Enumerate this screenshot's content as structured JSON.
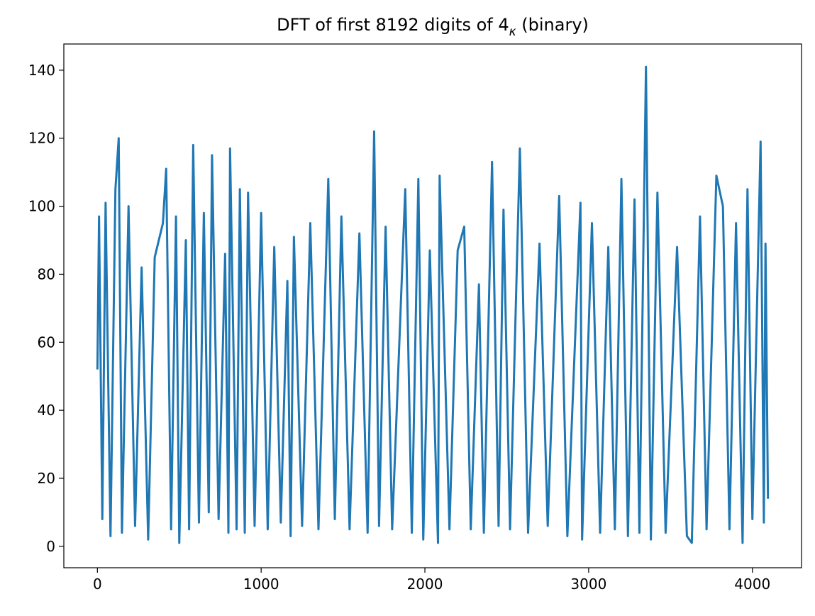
{
  "chart_data": {
    "type": "line",
    "title": "DFT of first 8192 digits of 4",
    "title_subscript": "κ",
    "title_suffix": " (binary)",
    "x": [
      0,
      10,
      30,
      50,
      80,
      110,
      130,
      150,
      190,
      230,
      270,
      310,
      350,
      400,
      420,
      450,
      480,
      500,
      540,
      560,
      585,
      620,
      650,
      680,
      700,
      740,
      780,
      800,
      810,
      850,
      870,
      900,
      920,
      960,
      1000,
      1040,
      1080,
      1120,
      1160,
      1180,
      1200,
      1250,
      1300,
      1350,
      1410,
      1450,
      1490,
      1540,
      1600,
      1650,
      1690,
      1720,
      1760,
      1800,
      1880,
      1920,
      1960,
      1990,
      2030,
      2080,
      2090,
      2150,
      2200,
      2240,
      2280,
      2330,
      2360,
      2410,
      2450,
      2480,
      2520,
      2580,
      2630,
      2700,
      2750,
      2820,
      2870,
      2950,
      2960,
      3020,
      3070,
      3120,
      3160,
      3200,
      3240,
      3280,
      3310,
      3350,
      3380,
      3420,
      3470,
      3540,
      3600,
      3630,
      3680,
      3720,
      3780,
      3820,
      3860,
      3900,
      3940,
      3970,
      4000,
      4050,
      4070,
      4080,
      4095
    ],
    "series": [
      {
        "color": "#1f77b4",
        "values": [
          52,
          97,
          8,
          101,
          3,
          105,
          120,
          4,
          100,
          6,
          82,
          2,
          85,
          95,
          111,
          5,
          97,
          1,
          90,
          5,
          118,
          7,
          98,
          10,
          115,
          8,
          86,
          4,
          117,
          5,
          105,
          4,
          104,
          6,
          98,
          5,
          88,
          7,
          78,
          3,
          91,
          6,
          95,
          5,
          108,
          8,
          97,
          5,
          92,
          4,
          122,
          6,
          94,
          5,
          105,
          4,
          108,
          2,
          87,
          1,
          109,
          5,
          87,
          94,
          5,
          77,
          4,
          113,
          6,
          99,
          5,
          117,
          4,
          89,
          6,
          103,
          3,
          101,
          2,
          95,
          4,
          88,
          5,
          108,
          3,
          102,
          4,
          141,
          2,
          104,
          4,
          88,
          3,
          1,
          97,
          5,
          109,
          100,
          5,
          95,
          1,
          105,
          8,
          119,
          7,
          89,
          14
        ]
      }
    ],
    "xlim": [
      -205,
      4300
    ],
    "ylim": [
      -6.3,
      147.7
    ],
    "xticks": [
      0,
      1000,
      2000,
      3000,
      4000
    ],
    "yticks": [
      0,
      20,
      40,
      60,
      80,
      100,
      120,
      140
    ]
  }
}
